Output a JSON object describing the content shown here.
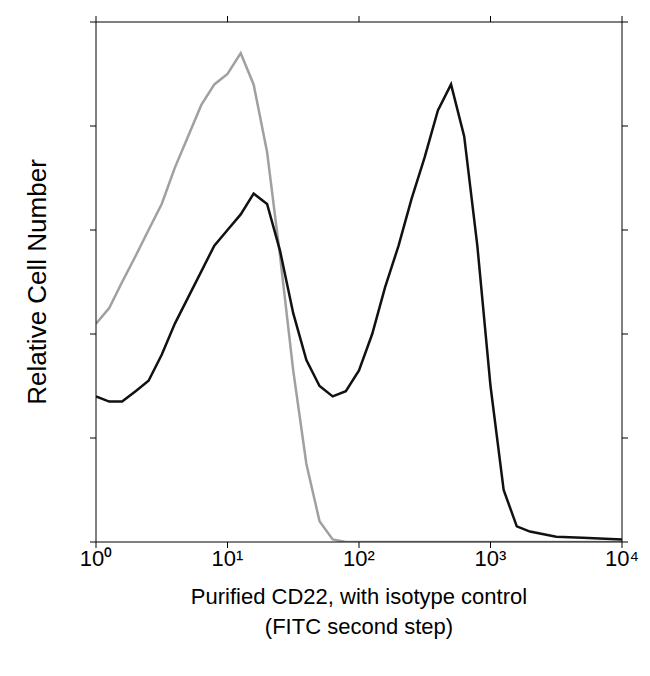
{
  "chart_data": {
    "type": "line",
    "xlabel": "Purified CD22, with isotype control\n(FITC second step)",
    "ylabel": "Relative Cell Number",
    "log": "x",
    "tick_labels": "x",
    "xlim": [
      1,
      10000
    ],
    "xticks": [
      {
        "value": 1,
        "label": "10⁰"
      },
      {
        "value": 10,
        "label": "10¹"
      },
      {
        "value": 100,
        "label": "10²"
      },
      {
        "value": 1000,
        "label": "10³"
      },
      {
        "value": 10000,
        "label": "10⁴"
      }
    ],
    "ylim": [
      0,
      100
    ],
    "yticks": [
      0,
      20,
      40,
      60,
      80,
      100
    ],
    "x": [
      1,
      1.26,
      1.58,
      2,
      2.51,
      3.16,
      3.98,
      5.01,
      6.31,
      7.94,
      10,
      12.6,
      15.8,
      20,
      25.1,
      31.6,
      39.8,
      50.1,
      63.1,
      79.4,
      100,
      126,
      158,
      200,
      251,
      316,
      398,
      501,
      631,
      794,
      1000,
      1259,
      1585,
      1995,
      3162,
      5012,
      10000
    ],
    "series": [
      {
        "color": "#a0a0a0",
        "values": [
          42,
          45,
          50,
          55,
          60,
          65,
          72,
          78,
          84,
          88,
          90,
          94,
          88,
          75,
          55,
          33,
          15,
          4,
          0.5,
          0,
          0,
          0,
          0,
          0,
          0,
          0,
          0,
          0,
          0,
          0,
          0,
          0,
          0,
          0,
          0,
          0,
          0
        ]
      },
      {
        "color": "#111111",
        "values": [
          28,
          27,
          27,
          29,
          31,
          36,
          42,
          47,
          52,
          57,
          60,
          63,
          67,
          65,
          56,
          44,
          35,
          30,
          28,
          29,
          33,
          40,
          49,
          57,
          66,
          74,
          83,
          88,
          78,
          57,
          30,
          10,
          3,
          2,
          1,
          0.8,
          0.5
        ]
      }
    ]
  }
}
